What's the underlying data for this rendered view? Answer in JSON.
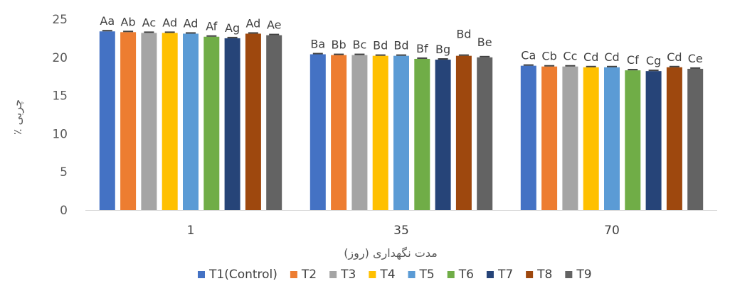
{
  "chart_data": {
    "type": "bar",
    "title": "",
    "xlabel": "مدت نگهداری (روز)",
    "ylabel": "٪ چربی",
    "categories": [
      "1",
      "35",
      "70"
    ],
    "ylim": [
      0,
      25
    ],
    "yticks": [
      0,
      5,
      10,
      15,
      20,
      25
    ],
    "grid": false,
    "legend_position": "bottom",
    "error_bars": true,
    "series": [
      {
        "name": "T1(Control)",
        "color": "#4472C4",
        "values": [
          23.4,
          20.4,
          18.9
        ],
        "labels": [
          "Aa",
          "Ba",
          "Ca"
        ]
      },
      {
        "name": "T2",
        "color": "#ED7D31",
        "values": [
          23.3,
          20.3,
          18.8
        ],
        "labels": [
          "Ab",
          "Bb",
          "Cb"
        ]
      },
      {
        "name": "T3",
        "color": "#A5A5A5",
        "values": [
          23.2,
          20.3,
          18.8
        ],
        "labels": [
          "Ac",
          "Bc",
          "Cc"
        ]
      },
      {
        "name": "T4",
        "color": "#FFC000",
        "values": [
          23.2,
          20.2,
          18.7
        ],
        "labels": [
          "Ad",
          "Bd",
          "Cd"
        ]
      },
      {
        "name": "T5",
        "color": "#5B9BD5",
        "values": [
          23.1,
          20.2,
          18.7
        ],
        "labels": [
          "Ad",
          "Bd",
          "Cd"
        ]
      },
      {
        "name": "T6",
        "color": "#70AD47",
        "values": [
          22.7,
          19.8,
          18.3
        ],
        "labels": [
          "Af",
          "Bf",
          "Cf"
        ]
      },
      {
        "name": "T7",
        "color": "#264478",
        "values": [
          22.5,
          19.7,
          18.2
        ],
        "labels": [
          "Ag",
          "Bg",
          "Cg"
        ]
      },
      {
        "name": "T8",
        "color": "#9E480E",
        "values": [
          23.1,
          20.2,
          18.7
        ],
        "labels": [
          "Ad",
          "Bd",
          "Cd"
        ]
      },
      {
        "name": "T9",
        "color": "#636363",
        "values": [
          22.9,
          20.0,
          18.5
        ],
        "labels": [
          "Ae",
          "Be",
          "Ce"
        ]
      }
    ]
  }
}
